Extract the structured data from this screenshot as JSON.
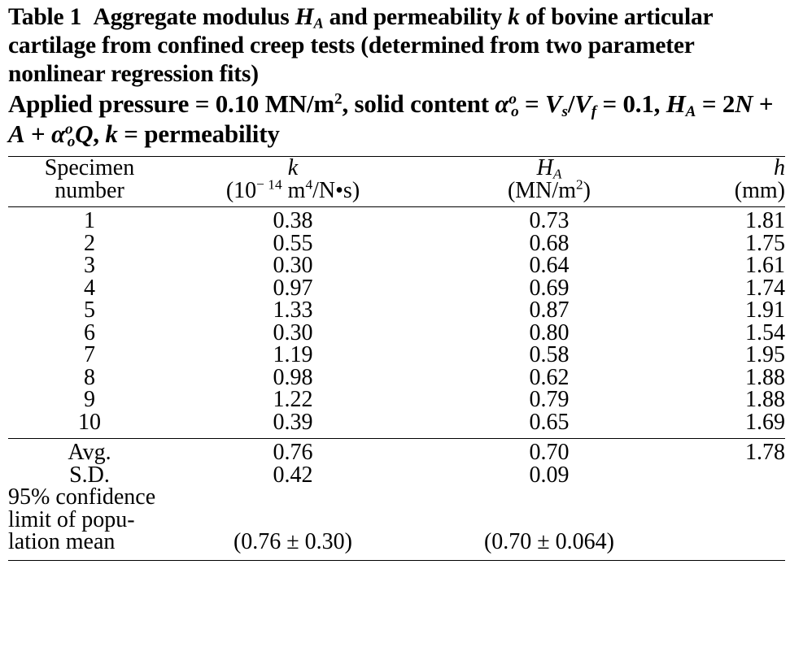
{
  "caption": {
    "table_label": "Table 1",
    "title_pre": "Aggregate modulus ",
    "HA_H": "H",
    "HA_sub": "A",
    "title_mid": " and permeability ",
    "k": "k",
    "title_post": " of bovine articular cartilage from confined creep tests (determined from two parameter nonlinear regression fits)",
    "conditions_1": "Applied pressure = 0.10 MN/m",
    "conditions_1_sup": "2",
    "conditions_2": ", solid content ",
    "alpha": "α",
    "alpha_sup": "o",
    "alpha_sub": "o",
    "conditions_3": " = ",
    "Vs_V": "V",
    "Vs_sub": "s",
    "slash": "/",
    "Vf_V": "V",
    "Vf_sub": "f",
    "conditions_4": " = 0.1, ",
    "eq_H": "H",
    "eq_H_sub": "A",
    "eq_1": " = 2",
    "eq_N": "N",
    "eq_2": " + ",
    "eq_A": "A",
    "eq_3": " + ",
    "eq_alpha": "α",
    "eq_alpha_sup": "o",
    "eq_alpha_sub": "o",
    "eq_Q": "Q",
    "eq_4": ", ",
    "eq_k": "k",
    "eq_5": " = permeability"
  },
  "table": {
    "headers": {
      "specimen_line1": "Specimen",
      "specimen_line2": "number",
      "k_sym": "k",
      "k_unit_pre": "(10",
      "k_unit_exp": "− 14",
      "k_unit_mid": " m",
      "k_unit_exp2": "4",
      "k_unit_post": "/N•s)",
      "ha_sym": "H",
      "ha_sub": "A",
      "ha_unit_pre": "(MN/m",
      "ha_unit_exp": "2",
      "ha_unit_post": ")",
      "h_sym": "h",
      "h_unit": "(mm)"
    },
    "rows": [
      {
        "specimen": "1",
        "k": "0.38",
        "ha": "0.73",
        "h": "1.81"
      },
      {
        "specimen": "2",
        "k": "0.55",
        "ha": "0.68",
        "h": "1.75"
      },
      {
        "specimen": "3",
        "k": "0.30",
        "ha": "0.64",
        "h": "1.61"
      },
      {
        "specimen": "4",
        "k": "0.97",
        "ha": "0.69",
        "h": "1.74"
      },
      {
        "specimen": "5",
        "k": "1.33",
        "ha": "0.87",
        "h": "1.91"
      },
      {
        "specimen": "6",
        "k": "0.30",
        "ha": "0.80",
        "h": "1.54"
      },
      {
        "specimen": "7",
        "k": "1.19",
        "ha": "0.58",
        "h": "1.95"
      },
      {
        "specimen": "8",
        "k": "0.98",
        "ha": "0.62",
        "h": "1.88"
      },
      {
        "specimen": "9",
        "k": "1.22",
        "ha": "0.79",
        "h": "1.88"
      },
      {
        "specimen": "10",
        "k": "0.39",
        "ha": "0.65",
        "h": "1.69"
      }
    ],
    "summary": {
      "avg_label": "Avg.",
      "avg_k": "0.76",
      "avg_ha": "0.70",
      "avg_h": "1.78",
      "sd_label": "S.D.",
      "sd_k": "0.42",
      "sd_ha": "0.09",
      "conf_line1": "95% confidence",
      "conf_line2": "limit of popu-",
      "conf_line3": "lation mean",
      "conf_k": "(0.76 ± 0.30)",
      "conf_ha": "(0.70 ± 0.064)"
    }
  }
}
